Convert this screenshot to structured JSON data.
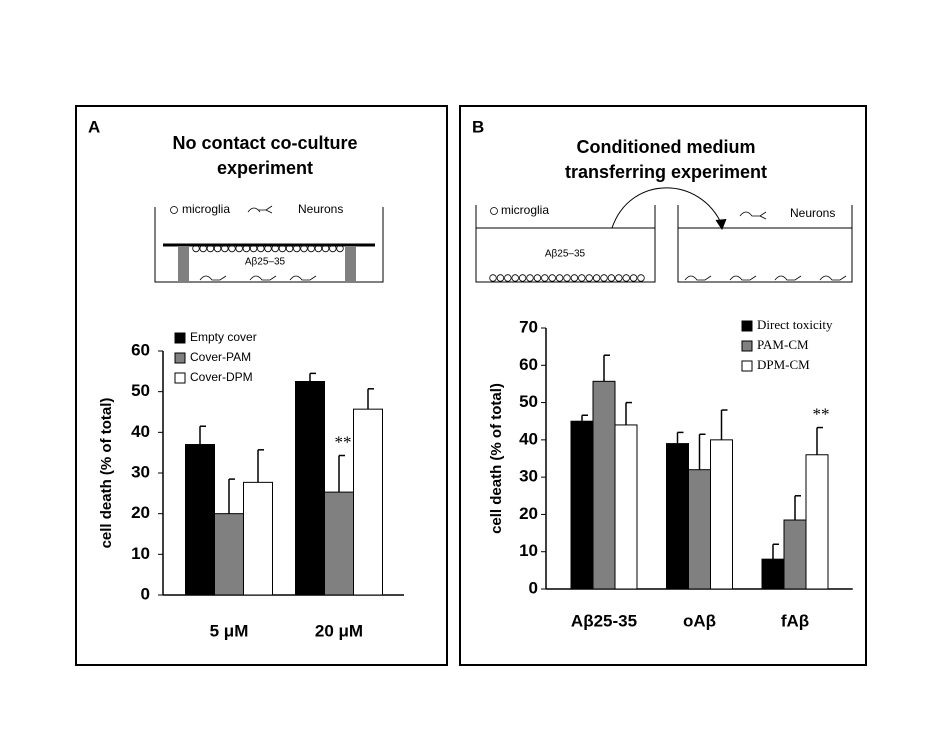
{
  "chart_data": [
    {
      "type": "bar",
      "panel": "A",
      "title": [
        "No contact co-culture",
        "experiment"
      ],
      "diagram_labels": [
        "microglia",
        "Neurons",
        "Aβ25–35"
      ],
      "y_label": "cell death (% of total)",
      "categories": [
        "5 μM",
        "20 μM"
      ],
      "series": [
        {
          "name": "Empty cover",
          "color": "#000000",
          "values": [
            37,
            52.5
          ],
          "errors": [
            4.5,
            2
          ]
        },
        {
          "name": "Cover-PAM",
          "color": "#808080",
          "values": [
            20,
            25.3
          ],
          "errors": [
            8.5,
            9
          ]
        },
        {
          "name": "Cover-DPM",
          "color": "#ffffff",
          "values": [
            27.7,
            45.7
          ],
          "errors": [
            8,
            5
          ]
        }
      ],
      "annotations": [
        {
          "text": "**",
          "series": 1,
          "category": 1
        }
      ],
      "ylim": [
        0,
        60
      ],
      "yticks": [
        0,
        10,
        20,
        30,
        40,
        50,
        60
      ],
      "grid": false
    },
    {
      "type": "bar",
      "panel": "B",
      "title": [
        "Conditioned medium",
        "transferring experiment"
      ],
      "diagram_labels": [
        "microglia",
        "Neurons",
        "Aβ25–35"
      ],
      "y_label": "cell death (% of total)",
      "categories": [
        "Aβ25-35",
        "oAβ",
        "fAβ"
      ],
      "series": [
        {
          "name": "Direct toxicity",
          "color": "#000000",
          "values": [
            45,
            39,
            8
          ],
          "errors": [
            1.6,
            3,
            4
          ]
        },
        {
          "name": "PAM-CM",
          "color": "#808080",
          "values": [
            55.7,
            32,
            18.5
          ],
          "errors": [
            7,
            9.5,
            6.5
          ]
        },
        {
          "name": "DPM-CM",
          "color": "#ffffff",
          "values": [
            44,
            40,
            36
          ],
          "errors": [
            6,
            8,
            7.3
          ]
        }
      ],
      "annotations": [
        {
          "text": "**",
          "series": 2,
          "category": 2
        }
      ],
      "ylim": [
        0,
        70
      ],
      "yticks": [
        0,
        10,
        20,
        30,
        40,
        50,
        60,
        70
      ],
      "grid": false
    }
  ]
}
